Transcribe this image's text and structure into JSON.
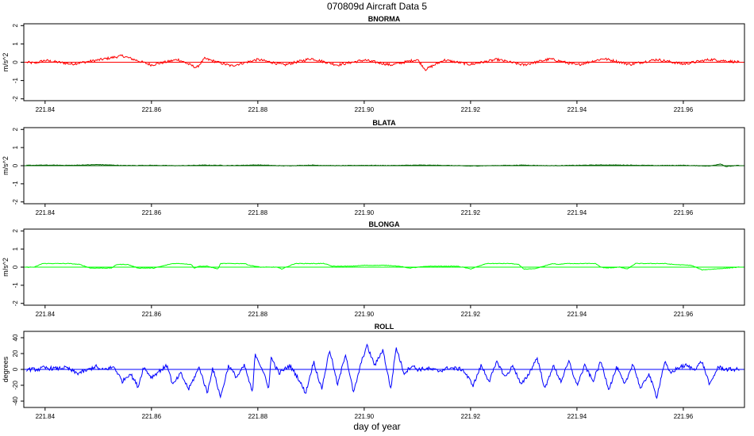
{
  "figure": {
    "title": "070809d   Aircraft Data 5",
    "xlabel": "day of year"
  },
  "chart_data": [
    {
      "type": "line",
      "title": "BNORMA",
      "ylabel": "m/s^2",
      "color": "#ff0000",
      "xlim": [
        221.836,
        221.9715
      ],
      "ylim": [
        -2.1,
        2.1
      ],
      "xticks": [
        221.84,
        221.86,
        221.88,
        221.9,
        221.92,
        221.94,
        221.96
      ],
      "xtick_labels": [
        "221.84",
        "221.86",
        "221.88",
        "221.90",
        "221.92",
        "221.94",
        "221.96"
      ],
      "yticks": [
        -2,
        -1,
        0,
        1,
        2
      ],
      "ytick_labels": [
        "-2",
        "-1",
        "0",
        "1",
        "2"
      ],
      "x": [
        221.8365,
        221.838,
        221.84,
        221.845,
        221.85,
        221.8545,
        221.86,
        221.865,
        221.8685,
        221.87,
        221.875,
        221.88,
        221.885,
        221.89,
        221.895,
        221.9,
        221.905,
        221.91,
        221.9115,
        221.915,
        221.92,
        221.925,
        221.93,
        221.935,
        221.94,
        221.945,
        221.95,
        221.955,
        221.96,
        221.965,
        221.967,
        221.9705
      ],
      "series": [
        {
          "values": [
            0,
            -0.05,
            0.1,
            -0.1,
            0.12,
            0.35,
            -0.15,
            0.15,
            -0.3,
            0.2,
            -0.2,
            0.15,
            -0.15,
            0.2,
            -0.15,
            0.12,
            -0.15,
            0.15,
            -0.4,
            0.12,
            -0.12,
            0.15,
            -0.15,
            0.18,
            -0.15,
            0.2,
            -0.12,
            0.15,
            -0.1,
            0.15,
            0.1,
            0
          ]
        }
      ]
    },
    {
      "type": "line",
      "title": "BLATA",
      "ylabel": "m/s^2",
      "color": "#006400",
      "xlim": [
        221.836,
        221.9715
      ],
      "ylim": [
        -2.1,
        2.1
      ],
      "xticks": [
        221.84,
        221.86,
        221.88,
        221.9,
        221.92,
        221.94,
        221.96
      ],
      "xtick_labels": [
        "221.84",
        "221.86",
        "221.88",
        "221.90",
        "221.92",
        "221.94",
        "221.96"
      ],
      "yticks": [
        -2,
        -1,
        0,
        1,
        2
      ],
      "ytick_labels": [
        "-2",
        "-1",
        "0",
        "1",
        "2"
      ],
      "x": [
        221.8365,
        221.84,
        221.845,
        221.85,
        221.855,
        221.86,
        221.865,
        221.87,
        221.875,
        221.88,
        221.885,
        221.89,
        221.895,
        221.9,
        221.905,
        221.91,
        221.915,
        221.92,
        221.925,
        221.93,
        221.935,
        221.94,
        221.945,
        221.95,
        221.955,
        221.96,
        221.965,
        221.967,
        221.968,
        221.9705
      ],
      "series": [
        {
          "values": [
            0.02,
            0.03,
            0.02,
            0.06,
            0.01,
            0.02,
            0.0,
            0.03,
            0.01,
            0.04,
            -0.01,
            0.03,
            0.0,
            0.02,
            0.01,
            0.03,
            0.02,
            -0.02,
            0.01,
            0.03,
            0.0,
            0.02,
            0.04,
            0.03,
            0.01,
            0.02,
            -0.02,
            0.1,
            -0.05,
            0.02
          ]
        }
      ]
    },
    {
      "type": "line",
      "title": "BLONGA",
      "ylabel": "m/s^2",
      "color": "#00ff00",
      "xlim": [
        221.836,
        221.9715
      ],
      "ylim": [
        -2.1,
        2.1
      ],
      "xticks": [
        221.84,
        221.86,
        221.88,
        221.9,
        221.92,
        221.94,
        221.96
      ],
      "xtick_labels": [
        "221.84",
        "221.86",
        "221.88",
        "221.90",
        "221.92",
        "221.94",
        "221.96"
      ],
      "yticks": [
        -2,
        -1,
        0,
        1,
        2
      ],
      "ytick_labels": [
        "-2",
        "-1",
        "0",
        "1",
        "2"
      ],
      "x": [
        221.8365,
        221.838,
        221.8395,
        221.8445,
        221.8465,
        221.8485,
        221.8525,
        221.8535,
        221.8555,
        221.8575,
        221.8605,
        221.864,
        221.8655,
        221.8675,
        221.868,
        221.869,
        221.8705,
        221.8725,
        221.873,
        221.8775,
        221.8785,
        221.8805,
        221.8835,
        221.8845,
        221.887,
        221.8925,
        221.894,
        221.8975,
        221.9,
        221.9045,
        221.9065,
        221.9085,
        221.912,
        221.9175,
        221.9185,
        221.92,
        221.923,
        221.9275,
        221.929,
        221.93,
        221.932,
        221.9355,
        221.9365,
        221.938,
        221.9435,
        221.9445,
        221.9455,
        221.948,
        221.9495,
        221.951,
        221.9565,
        221.958,
        221.9615,
        221.9635,
        221.966,
        221.9705
      ],
      "series": [
        {
          "values": [
            0.0,
            0.0,
            0.2,
            0.2,
            0.15,
            -0.05,
            -0.05,
            0.15,
            0.15,
            -0.05,
            -0.05,
            0.2,
            0.2,
            0.15,
            -0.05,
            0.05,
            0.05,
            -0.1,
            0.2,
            0.2,
            0.1,
            0.0,
            0.0,
            -0.1,
            0.2,
            0.2,
            0.05,
            0.05,
            0.1,
            0.1,
            0.05,
            -0.05,
            0.05,
            0.05,
            0.0,
            -0.1,
            0.2,
            0.2,
            0.15,
            -0.1,
            -0.1,
            0.2,
            0.15,
            0.2,
            0.2,
            0.0,
            -0.05,
            0.0,
            -0.1,
            0.2,
            0.2,
            0.15,
            0.1,
            -0.15,
            -0.1,
            0.0
          ]
        }
      ]
    },
    {
      "type": "line",
      "title": "ROLL",
      "ylabel": "degrees",
      "color": "#0000ff",
      "xlim": [
        221.836,
        221.9715
      ],
      "ylim": [
        -48,
        48
      ],
      "xticks": [
        221.84,
        221.86,
        221.88,
        221.9,
        221.92,
        221.94,
        221.96
      ],
      "xtick_labels": [
        "221.84",
        "221.86",
        "221.88",
        "221.90",
        "221.92",
        "221.94",
        "221.96"
      ],
      "yticks": [
        -40,
        -20,
        0,
        20,
        40
      ],
      "ytick_labels": [
        "-40",
        "-20",
        "0",
        "20",
        "40"
      ],
      "x": [
        221.8365,
        221.839,
        221.8395,
        221.842,
        221.844,
        221.846,
        221.848,
        221.8495,
        221.8505,
        221.853,
        221.8545,
        221.856,
        221.8575,
        221.8585,
        221.86,
        221.8615,
        221.863,
        221.864,
        221.8655,
        221.867,
        221.869,
        221.8705,
        221.8715,
        221.873,
        221.8745,
        221.876,
        221.8775,
        221.879,
        221.8795,
        221.881,
        221.882,
        221.8825,
        221.884,
        221.886,
        221.8875,
        221.889,
        221.8905,
        221.892,
        221.8935,
        221.895,
        221.8965,
        221.898,
        221.8995,
        221.9005,
        221.902,
        221.9035,
        221.905,
        221.906,
        221.9075,
        221.909,
        221.91,
        221.912,
        221.914,
        221.916,
        221.9185,
        221.9205,
        221.922,
        221.9235,
        221.925,
        221.9265,
        221.928,
        221.9295,
        221.931,
        221.9325,
        221.934,
        221.9355,
        221.937,
        221.9385,
        221.94,
        221.9415,
        221.943,
        221.9445,
        221.946,
        221.9475,
        221.949,
        221.9505,
        221.952,
        221.9535,
        221.955,
        221.9565,
        221.9575,
        221.959,
        221.9605,
        221.962,
        221.9635,
        221.965,
        221.9665,
        221.968,
        221.9705
      ],
      "series": [
        {
          "values": [
            0,
            0,
            2,
            1,
            2,
            -5,
            -1,
            4,
            -1,
            3,
            -15,
            -5,
            -22,
            3,
            -10,
            -2,
            5,
            -20,
            -5,
            -25,
            3,
            -30,
            2,
            -35,
            5,
            -10,
            5,
            -30,
            20,
            -2,
            -25,
            15,
            -5,
            5,
            -10,
            -30,
            10,
            -25,
            25,
            -20,
            20,
            -30,
            10,
            30,
            5,
            25,
            -25,
            28,
            -5,
            5,
            0,
            1,
            -2,
            2,
            0,
            -20,
            5,
            -15,
            10,
            -10,
            5,
            -20,
            -5,
            15,
            -25,
            5,
            -15,
            10,
            -20,
            5,
            -15,
            10,
            -25,
            3,
            -20,
            8,
            -25,
            -5,
            -35,
            10,
            -5,
            2,
            5,
            0,
            10,
            -20,
            3,
            0,
            0
          ]
        }
      ]
    }
  ]
}
